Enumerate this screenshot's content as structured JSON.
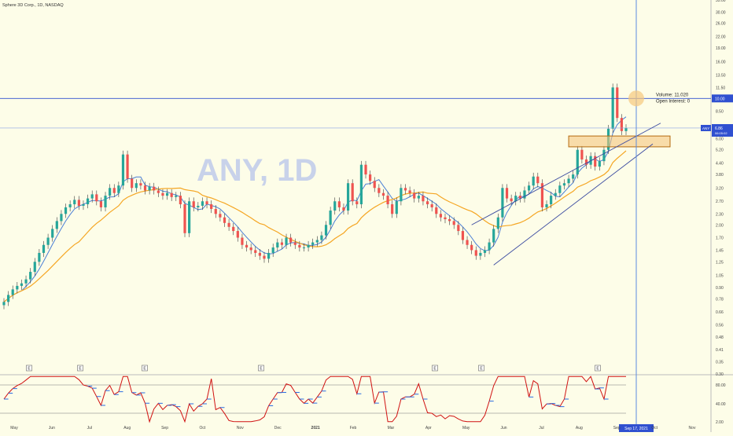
{
  "header": {
    "symbol_desc": "Sphere 3D Corp., 1D, NASDAQ"
  },
  "watermark": {
    "ticker": "ANY, 1D",
    "name": "Sphere 3D Corp."
  },
  "colors": {
    "background": "#fdfde8",
    "up": "#26a69a",
    "down": "#ef5350",
    "wick": "#3a3a3a",
    "ma_fast": "#4a7fd6",
    "ma_slow": "#f5a623",
    "trend": "#3a4aa0",
    "zone_fill": "#f5c77e",
    "zone_stroke": "#b56a10",
    "hline": "#3050d0",
    "cursor": "#5b8be0",
    "rsi_red": "#d01010",
    "rsi_blue": "#2c6de0",
    "price_tag": "#3050d0",
    "axis_text": "#444444"
  },
  "chart_data": {
    "type": "candlestick",
    "scale": "log",
    "y_ticks": [
      "35.00",
      "30.00",
      "26.00",
      "22.00",
      "19.00",
      "16.00",
      "13.50",
      "11.50",
      "8.50",
      "6.00",
      "5.20",
      "4.40",
      "3.80",
      "3.20",
      "2.70",
      "2.30",
      "2.00",
      "1.70",
      "1.45",
      "1.25",
      "1.05",
      "0.90",
      "0.78",
      "0.66",
      "0.56",
      "0.48",
      "0.41",
      "0.35",
      "0.30"
    ],
    "x_ticks": [
      "May",
      "Jun",
      "Jul",
      "Aug",
      "Sep",
      "Oct",
      "Nov",
      "Dec",
      "2021",
      "Feb",
      "Mar",
      "Apr",
      "May",
      "Jun",
      "Jul",
      "Aug",
      "Sep",
      "Oct",
      "Nov"
    ],
    "closes": [
      0.75,
      0.82,
      0.88,
      0.92,
      0.95,
      1.0,
      1.1,
      1.25,
      1.4,
      1.55,
      1.7,
      1.9,
      2.1,
      2.3,
      2.5,
      2.6,
      2.75,
      2.55,
      2.6,
      2.8,
      2.95,
      2.7,
      2.5,
      2.9,
      3.2,
      3.0,
      3.3,
      4.9,
      3.6,
      3.2,
      3.4,
      3.3,
      3.1,
      3.25,
      3.1,
      3.0,
      2.9,
      3.0,
      2.85,
      2.9,
      2.6,
      1.8,
      2.7,
      2.5,
      2.55,
      2.7,
      2.6,
      2.45,
      2.3,
      2.2,
      2.05,
      1.95,
      1.85,
      1.7,
      1.55,
      1.5,
      1.45,
      1.4,
      1.35,
      1.3,
      1.4,
      1.5,
      1.6,
      1.55,
      1.7,
      1.6,
      1.55,
      1.5,
      1.5,
      1.55,
      1.6,
      1.65,
      1.75,
      2.0,
      2.4,
      2.7,
      2.5,
      2.4,
      3.4,
      2.7,
      2.6,
      4.3,
      3.8,
      3.5,
      3.2,
      3.0,
      2.9,
      2.6,
      2.3,
      2.7,
      3.2,
      3.1,
      3.0,
      2.8,
      2.9,
      2.7,
      2.6,
      2.5,
      2.3,
      2.2,
      2.15,
      2.1,
      2.0,
      1.85,
      1.65,
      1.55,
      1.45,
      1.35,
      1.4,
      1.45,
      1.6,
      1.9,
      2.2,
      3.2,
      2.8,
      2.7,
      2.9,
      2.8,
      3.1,
      3.3,
      3.7,
      3.4,
      2.5,
      2.6,
      2.9,
      3.0,
      3.3,
      3.4,
      3.6,
      3.8,
      5.2,
      4.6,
      4.3,
      4.8,
      4.2,
      4.5,
      5.2,
      6.8,
      11.5,
      7.8,
      6.6,
      6.86
    ],
    "current_price": "6.86",
    "countdown": "06:05:02",
    "hline_label": "10.00",
    "cursor_date": "Sep 17, 2021",
    "tooltip_volume": "Volume: 11.020",
    "tooltip_oi": "Open Interest: 0",
    "earnings_marker": "E",
    "rsi_ticks": [
      "80.00",
      "40.00",
      "2.00"
    ]
  },
  "price_tag": {
    "symbol": "ANY"
  }
}
